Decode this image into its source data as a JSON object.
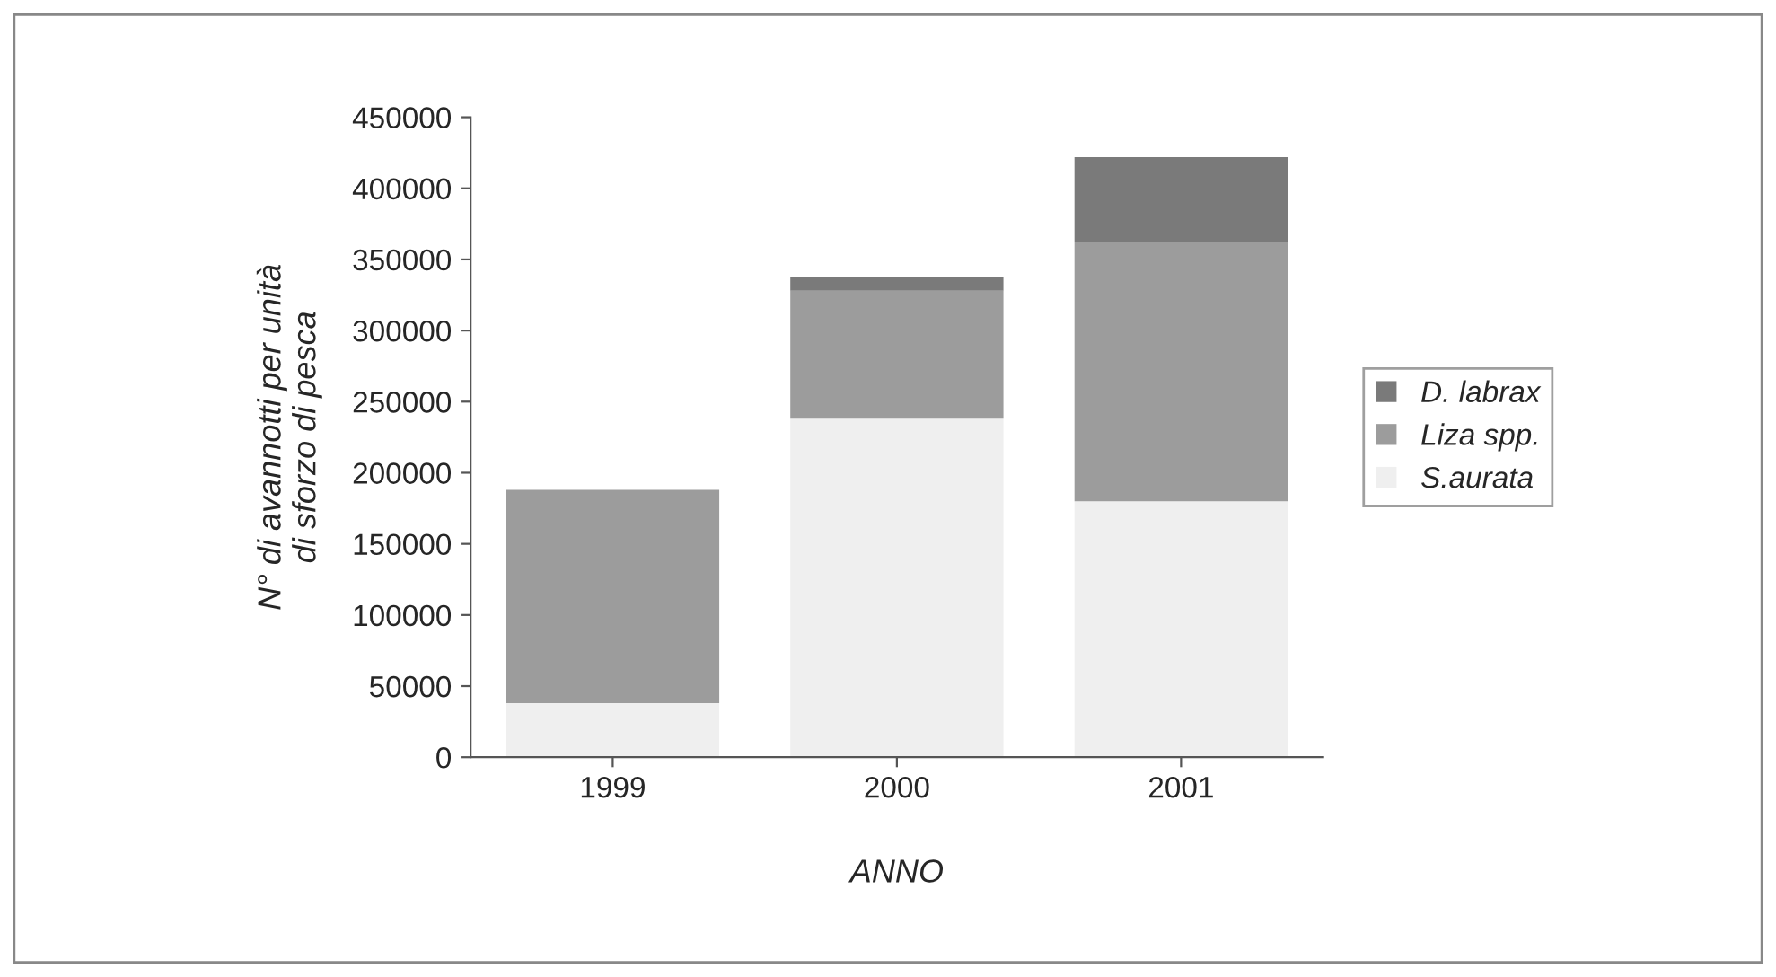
{
  "chart_data": {
    "type": "bar",
    "stacked": true,
    "categories": [
      "1999",
      "2000",
      "2001"
    ],
    "xlabel": "ANNO",
    "ylabel": "N° di avannotti per unità\ndi sforzo di pesca",
    "series": [
      {
        "name": "S.aurata",
        "color": "#efefef",
        "values": [
          38000,
          238000,
          180000
        ]
      },
      {
        "name": "Liza spp.",
        "color": "#9c9c9c",
        "values": [
          150000,
          90000,
          182000
        ]
      },
      {
        "name": "D. labrax",
        "color": "#7a7a7a",
        "values": [
          0,
          10000,
          60000
        ]
      }
    ],
    "ylim": [
      0,
      450000
    ],
    "yticks": [
      0,
      50000,
      100000,
      150000,
      200000,
      250000,
      300000,
      350000,
      400000,
      450000
    ],
    "grid": false,
    "legend": "right"
  }
}
